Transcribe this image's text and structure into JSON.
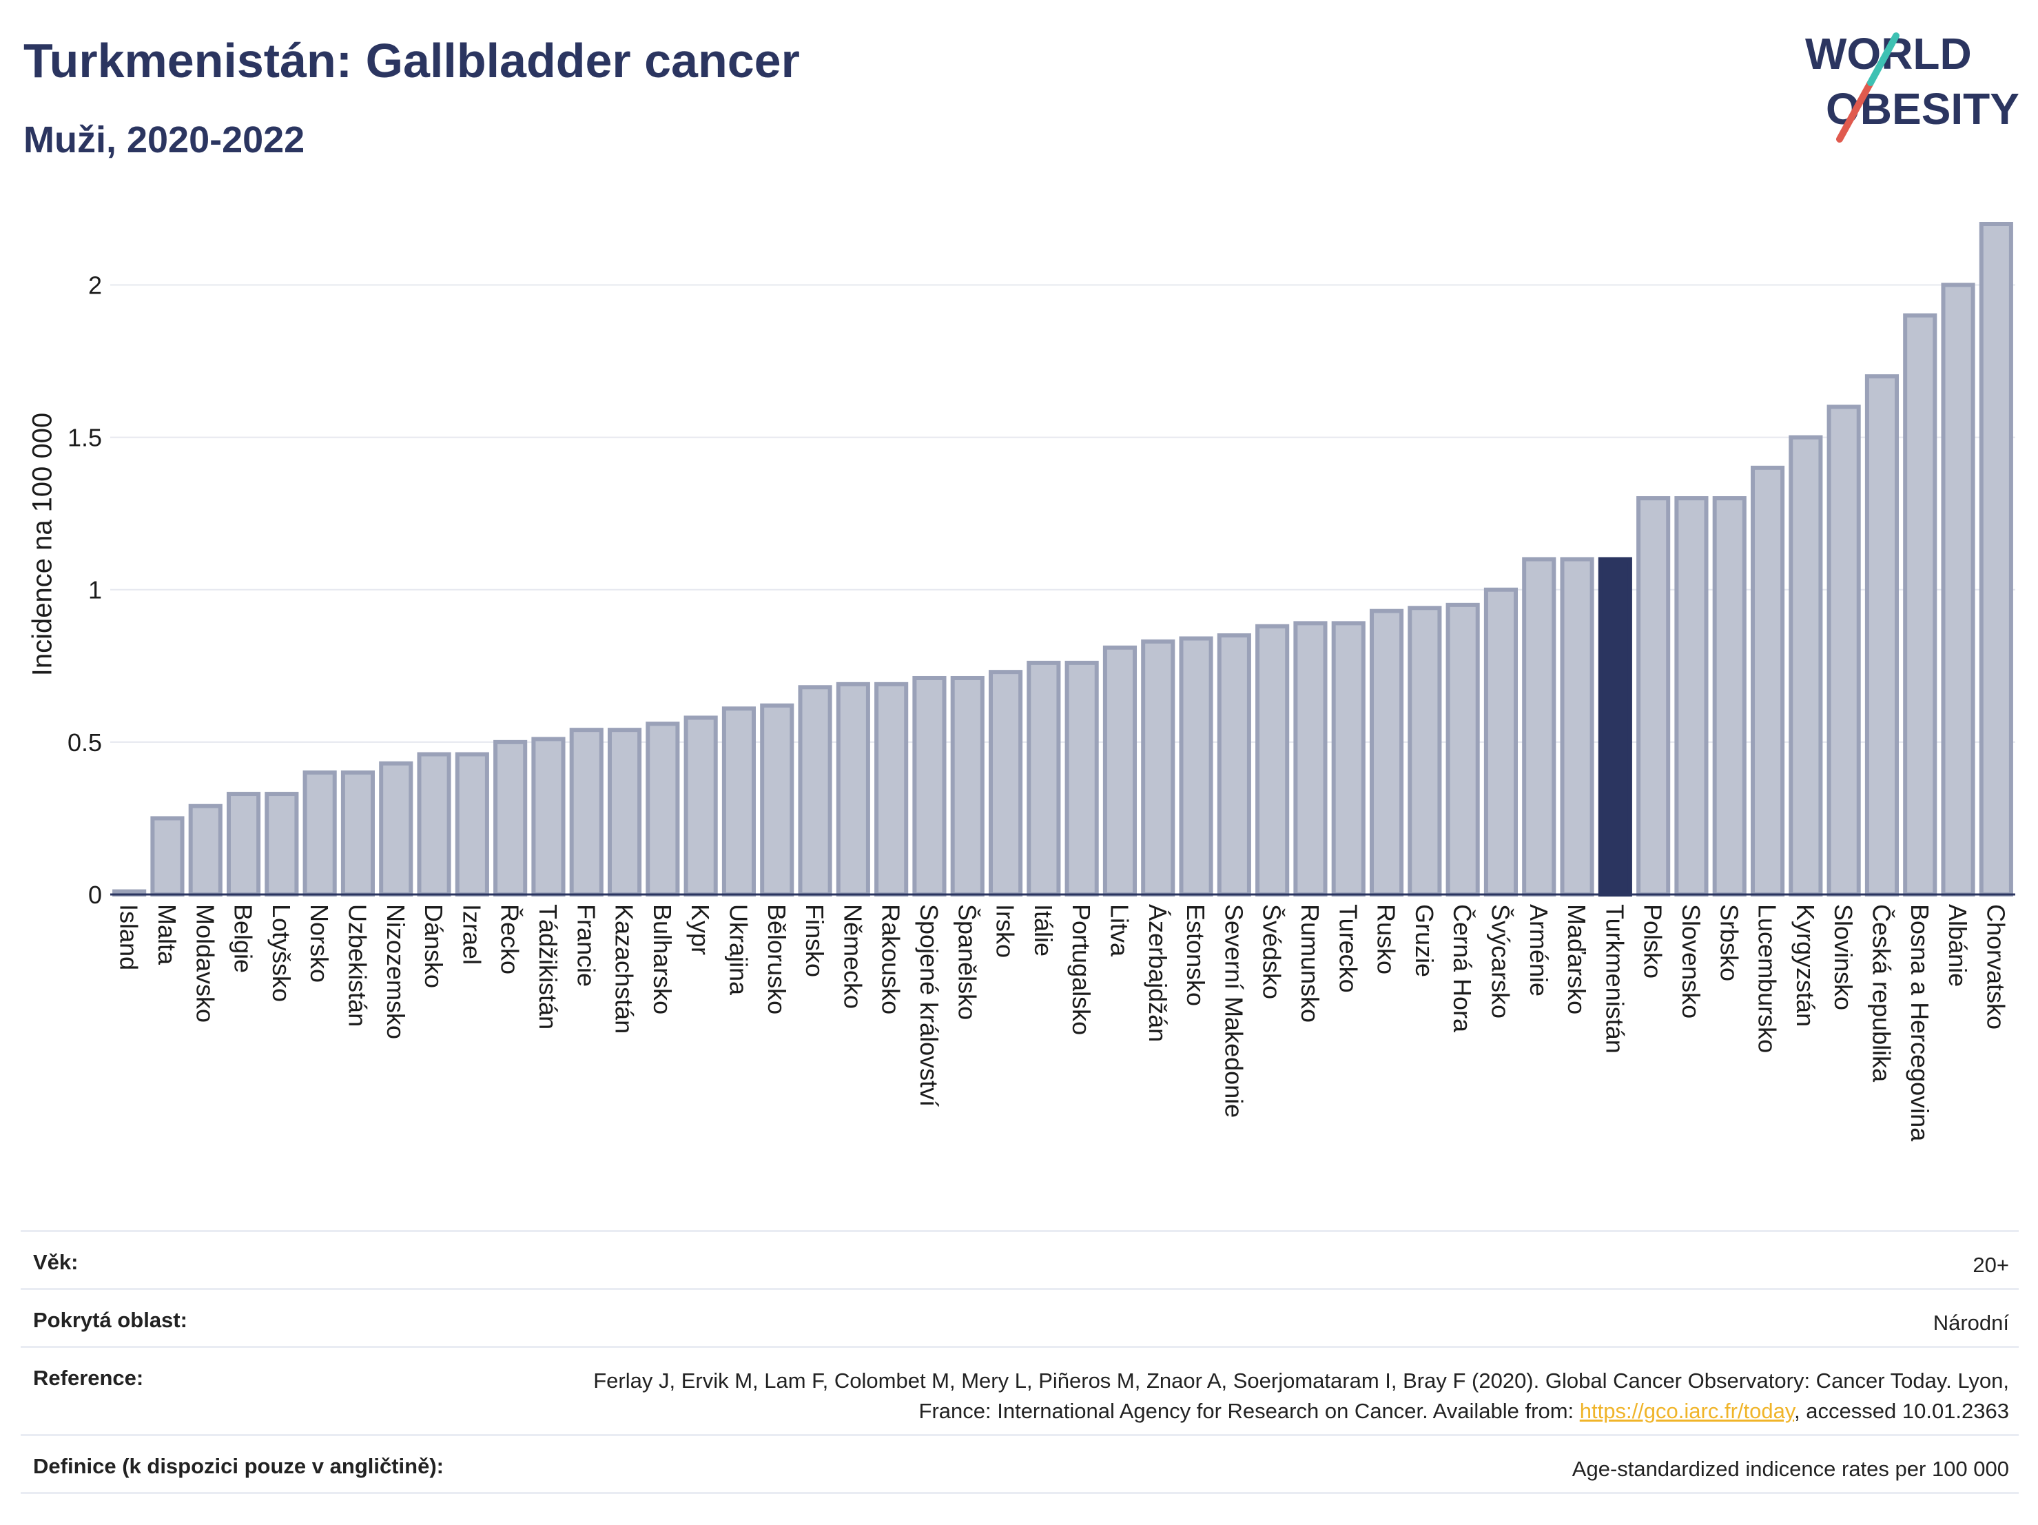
{
  "header": {
    "title": "Turkmenistán: Gallbladder cancer",
    "subtitle": "Muži, 2020-2022"
  },
  "logo": {
    "line1": "WORLD",
    "line2": "OBESITY",
    "accent_colors": [
      "#e05a4e",
      "#3ec1b3"
    ]
  },
  "chart_data": {
    "type": "bar",
    "ylabel": "Incidence na 100 000",
    "ylim": [
      0,
      2.2
    ],
    "yticks": [
      0,
      0.5,
      1,
      1.5,
      2
    ],
    "ytick_labels": [
      "0",
      "0.5",
      "1",
      "1.5",
      "2"
    ],
    "grid": true,
    "highlight": "Turkmenistán",
    "colors": {
      "bar_fill": "#bec3d1",
      "bar_stroke": "#9aa1b8",
      "highlight": "#2b3560"
    },
    "categories": [
      "Island",
      "Malta",
      "Moldavsko",
      "Belgie",
      "Lotyšsko",
      "Norsko",
      "Uzbekistán",
      "Nizozemsko",
      "Dánsko",
      "Izrael",
      "Řecko",
      "Tádžikistán",
      "Francie",
      "Kazachstán",
      "Bulharsko",
      "Kypr",
      "Ukrajina",
      "Bělorusko",
      "Finsko",
      "Německo",
      "Rakousko",
      "Spojené království",
      "Španělsko",
      "Irsko",
      "Itálie",
      "Portugalsko",
      "Litva",
      "Ázerbajdžán",
      "Estonsko",
      "Severní Makedonie",
      "Švédsko",
      "Rumunsko",
      "Turecko",
      "Rusko",
      "Gruzie",
      "Černá Hora",
      "Švýcarsko",
      "Arménie",
      "Maďarsko",
      "Turkmenistán",
      "Polsko",
      "Slovensko",
      "Srbsko",
      "Lucembursko",
      "Kyrgyzstán",
      "Slovinsko",
      "Česká republika",
      "Bosna a Hercegovina",
      "Albánie",
      "Chorvatsko"
    ],
    "values": [
      0.01,
      0.25,
      0.29,
      0.33,
      0.33,
      0.4,
      0.4,
      0.43,
      0.46,
      0.46,
      0.5,
      0.51,
      0.54,
      0.54,
      0.56,
      0.58,
      0.61,
      0.62,
      0.68,
      0.69,
      0.69,
      0.71,
      0.71,
      0.73,
      0.76,
      0.76,
      0.81,
      0.83,
      0.84,
      0.85,
      0.88,
      0.89,
      0.89,
      0.93,
      0.94,
      0.95,
      1.0,
      1.1,
      1.1,
      1.1,
      1.3,
      1.3,
      1.3,
      1.4,
      1.5,
      1.6,
      1.7,
      1.9,
      2.0,
      2.2
    ]
  },
  "info": [
    {
      "key": "Věk:",
      "value": "20+"
    },
    {
      "key": "Pokrytá oblast:",
      "value": "Národní"
    },
    {
      "key": "Reference:",
      "value_before": "Ferlay J, Ervik M, Lam F, Colombet M, Mery L, Piñeros M, Znaor A, Soerjomataram I, Bray F (2020). Global Cancer Observatory: Cancer Today. Lyon, France: International Agency for Research on Cancer. Available from: ",
      "link": "https://gco.iarc.fr/today",
      "value_after": ", accessed 10.01.2363"
    },
    {
      "key": "Definice (k dispozici pouze v angličtině):",
      "value": "Age-standardized indicence rates per 100 000"
    }
  ]
}
